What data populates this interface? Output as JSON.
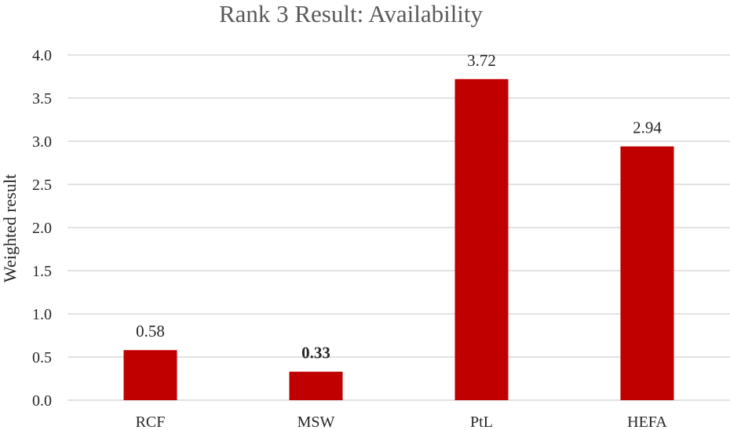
{
  "chart_data": {
    "type": "bar",
    "title": "Rank 3 Result: Availability",
    "xlabel": "",
    "ylabel": "Weighted result",
    "categories": [
      "RCF",
      "MSW",
      "PtL",
      "HEFA"
    ],
    "values": [
      0.58,
      0.33,
      3.72,
      2.94
    ],
    "data_labels": [
      "0.58",
      "0.33",
      "3.72",
      "2.94"
    ],
    "bold_labels": [
      false,
      true,
      false,
      false
    ],
    "ylim": [
      0,
      4
    ],
    "yticks": [
      "0.0",
      "0.5",
      "1.0",
      "1.5",
      "2.0",
      "2.5",
      "3.0",
      "3.5",
      "4.0"
    ],
    "ytick_values": [
      0,
      0.5,
      1,
      1.5,
      2,
      2.5,
      3,
      3.5,
      4
    ],
    "bar_color": "#c00000",
    "grid": true,
    "legend": "none"
  }
}
